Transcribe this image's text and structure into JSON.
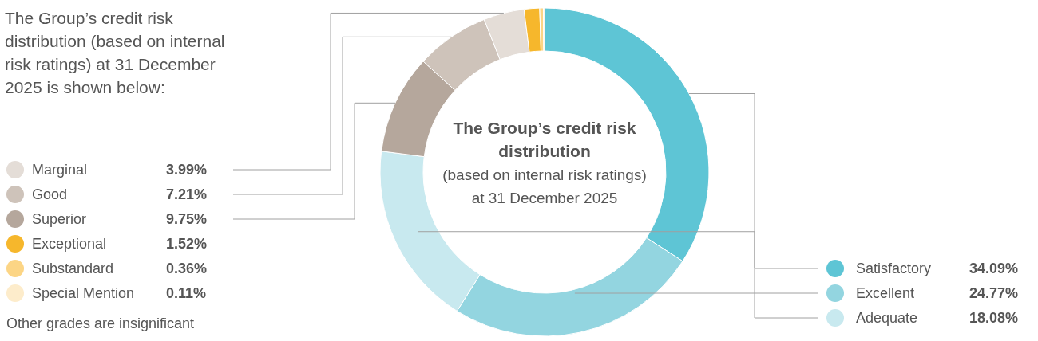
{
  "chart_data": {
    "type": "donut",
    "title": "The Group’s credit risk distribution",
    "subtitle": "(based on internal risk ratings) at 31 December 2025",
    "categories": [
      "Satisfactory",
      "Excellent",
      "Adequate",
      "Superior",
      "Good",
      "Marginal",
      "Exceptional",
      "Substandard",
      "Special Mention"
    ],
    "values": [
      34.09,
      24.77,
      18.08,
      9.75,
      7.21,
      3.99,
      1.52,
      0.36,
      0.11
    ],
    "value_labels": [
      "34.09%",
      "24.77%",
      "18.08%",
      "9.75%",
      "7.21%",
      "3.99%",
      "1.52%",
      "0.36%",
      "0.11%"
    ],
    "colors": [
      "#5ec5d5",
      "#93d5e0",
      "#c8e9ef",
      "#b5a79c",
      "#cec3ba",
      "#e4ddd7",
      "#f6b72c",
      "#fcd585",
      "#fdeccb"
    ],
    "legend": "left",
    "annotations": [
      "The Group’s credit risk distribution (based on internal risk ratings) at 31 December 2025 is shown below:",
      "Other grades are insignificant"
    ]
  }
}
